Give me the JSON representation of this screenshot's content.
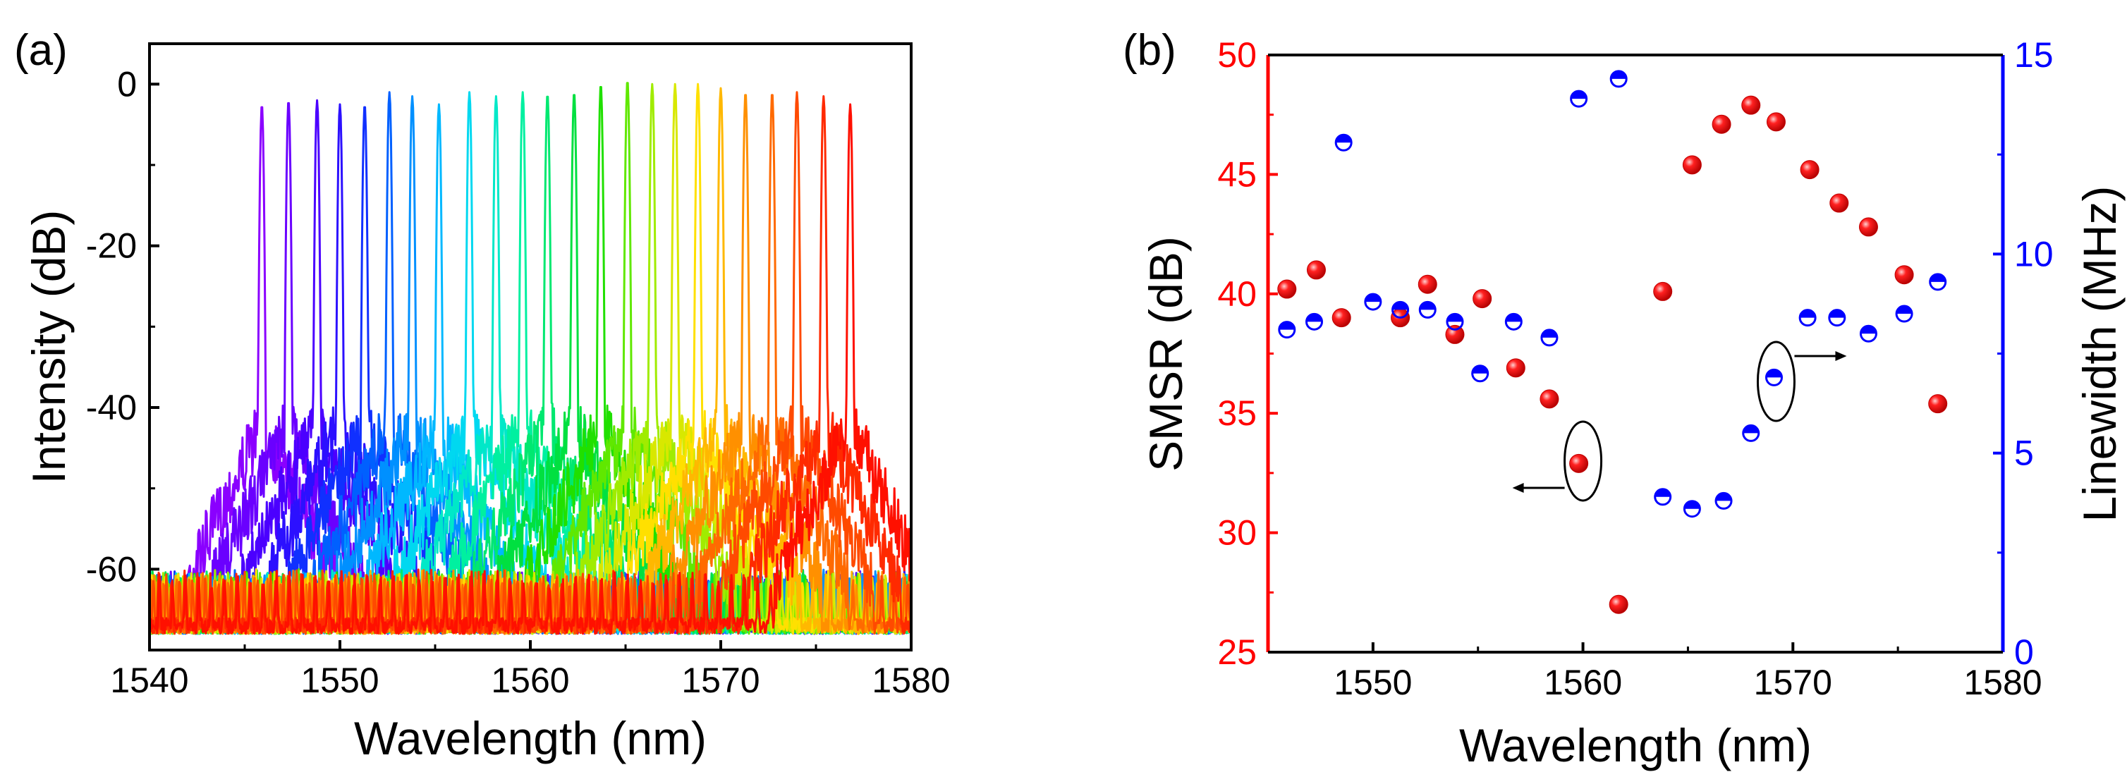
{
  "chart_data": [
    {
      "panel_label": "(a)",
      "type": "line",
      "xlabel": "Wavelength (nm)",
      "ylabel": "Intensity (dB)",
      "xlim": [
        1540,
        1580
      ],
      "ylim": [
        -70,
        5
      ],
      "xticks": [
        1540,
        1550,
        1560,
        1570,
        1580
      ],
      "yticks": [
        0,
        -20,
        -40,
        -60
      ],
      "grid": false,
      "colors": [
        "#8a00ff",
        "#6a00ff",
        "#4b00ff",
        "#2c10ff",
        "#1030ff",
        "#0060ff",
        "#0090ff",
        "#00b8ff",
        "#00d8f0",
        "#00e8c8",
        "#00f0a0",
        "#00e870",
        "#00e040",
        "#20e000",
        "#60e800",
        "#a0ec00",
        "#d8e800",
        "#ffe000",
        "#ffb800",
        "#ff9000",
        "#ff6a00",
        "#ff4a00",
        "#ff2a00",
        "#ff1000"
      ],
      "series_peaks": [
        {
          "peak_nm": 1545.9,
          "peak_db": -2.5
        },
        {
          "peak_nm": 1547.3,
          "peak_db": -2.0
        },
        {
          "peak_nm": 1548.8,
          "peak_db": -2.0
        },
        {
          "peak_nm": 1550.0,
          "peak_db": -2.5
        },
        {
          "peak_nm": 1551.3,
          "peak_db": -2.5
        },
        {
          "peak_nm": 1552.6,
          "peak_db": -1.0
        },
        {
          "peak_nm": 1553.8,
          "peak_db": -1.5
        },
        {
          "peak_nm": 1555.2,
          "peak_db": -2.5
        },
        {
          "peak_nm": 1556.8,
          "peak_db": -1.0
        },
        {
          "peak_nm": 1558.2,
          "peak_db": -1.5
        },
        {
          "peak_nm": 1559.6,
          "peak_db": -1.0
        },
        {
          "peak_nm": 1560.9,
          "peak_db": -1.2
        },
        {
          "peak_nm": 1562.3,
          "peak_db": -1.0
        },
        {
          "peak_nm": 1563.7,
          "peak_db": 0.0
        },
        {
          "peak_nm": 1565.1,
          "peak_db": 0.5
        },
        {
          "peak_nm": 1566.4,
          "peak_db": 0.0
        },
        {
          "peak_nm": 1567.6,
          "peak_db": 0.0
        },
        {
          "peak_nm": 1568.8,
          "peak_db": 0.0
        },
        {
          "peak_nm": 1570.0,
          "peak_db": -0.5
        },
        {
          "peak_nm": 1571.3,
          "peak_db": -1.0
        },
        {
          "peak_nm": 1572.7,
          "peak_db": -1.0
        },
        {
          "peak_nm": 1574.0,
          "peak_db": -1.0
        },
        {
          "peak_nm": 1575.4,
          "peak_db": -1.5
        },
        {
          "peak_nm": 1576.8,
          "peak_db": -2.5
        }
      ],
      "noise_floor_db": -66
    },
    {
      "panel_label": "(b)",
      "type": "scatter",
      "xlabel": "Wavelength (nm)",
      "ylabel_left": "SMSR (dB)",
      "ylabel_right": "Linewidth (MHz)",
      "xlim": [
        1545,
        1580
      ],
      "xticks": [
        1550,
        1560,
        1570,
        1580
      ],
      "ylim_left": [
        25,
        50
      ],
      "yticks_left": [
        25,
        30,
        35,
        40,
        45,
        50
      ],
      "ylim_right": [
        0,
        15
      ],
      "yticks_right": [
        0,
        5,
        10,
        15
      ],
      "left_color": "#ff0000",
      "right_color": "#0000ff",
      "grid": false,
      "series": [
        {
          "axis": "left",
          "color": "#ff0000",
          "x": [
            1545.9,
            1547.3,
            1548.5,
            1551.3,
            1552.6,
            1553.9,
            1555.2,
            1556.8,
            1558.4,
            1559.8,
            1561.7,
            1563.8,
            1565.2,
            1566.6,
            1568.0,
            1569.2,
            1570.8,
            1572.2,
            1573.6,
            1575.3,
            1576.9
          ],
          "y": [
            40.2,
            41.0,
            39.0,
            39.0,
            40.4,
            38.3,
            39.8,
            36.9,
            35.6,
            32.9,
            27.0,
            40.1,
            45.4,
            47.1,
            47.9,
            47.2,
            45.2,
            43.8,
            42.8,
            40.8,
            35.4
          ]
        },
        {
          "axis": "right",
          "color": "#0000ff",
          "x": [
            1545.9,
            1547.2,
            1548.6,
            1550.0,
            1551.3,
            1552.6,
            1553.9,
            1555.1,
            1556.7,
            1558.4,
            1559.8,
            1561.7,
            1563.8,
            1565.2,
            1566.7,
            1568.0,
            1569.1,
            1570.7,
            1572.1,
            1573.6,
            1575.3,
            1576.9
          ],
          "y": [
            8.1,
            8.3,
            12.8,
            8.8,
            8.6,
            8.6,
            8.3,
            7.0,
            8.3,
            7.9,
            13.9,
            14.4,
            3.9,
            3.6,
            3.8,
            5.5,
            6.9,
            8.4,
            8.4,
            8.0,
            8.5,
            9.3
          ]
        }
      ],
      "annotations": [
        {
          "text": "",
          "x": 1560.0,
          "y_left": 33.0,
          "arrow": "left"
        },
        {
          "text": "",
          "x": 1569.2,
          "y_right": 6.8,
          "arrow": "right"
        }
      ]
    }
  ]
}
